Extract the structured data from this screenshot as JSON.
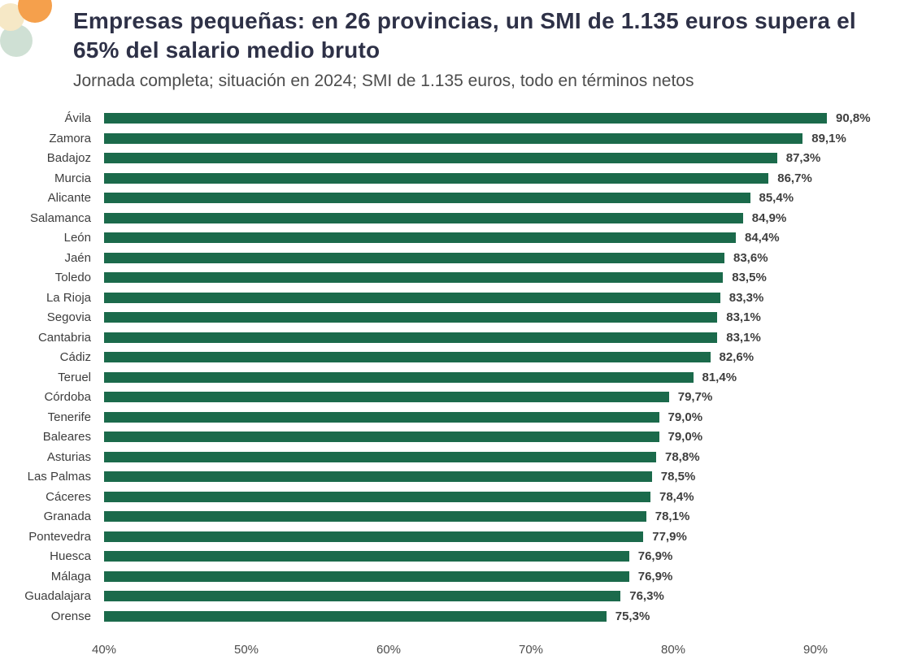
{
  "header": {
    "title": "Empresas pequeñas: en 26 provincias, un SMI de 1.135 euros supera el 65% del salario medio bruto",
    "subtitle": "Jornada completa; situación en 2024; SMI de 1.135 euros, todo en términos netos"
  },
  "colors": {
    "bar": "#1b6a4b",
    "title_text": "#2e3147",
    "subtitle_text": "#4d4d4d",
    "label_text": "#3d3d3d",
    "deco_orange": "#f5a04c",
    "deco_cream": "#f6e8c6",
    "deco_green": "#cfe0d4"
  },
  "chart_data": {
    "type": "bar",
    "orientation": "horizontal",
    "title": "Empresas pequeñas: en 26 provincias, un SMI de 1.135 euros supera el 65% del salario medio bruto",
    "subtitle": "Jornada completa; situación en 2024; SMI de 1.135 euros, todo en términos netos",
    "xlabel": "",
    "ylabel": "",
    "xlim": [
      40,
      96
    ],
    "grid": false,
    "legend": false,
    "categories": [
      "Ávila",
      "Zamora",
      "Badajoz",
      "Murcia",
      "Alicante",
      "Salamanca",
      "León",
      "Jaén",
      "Toledo",
      "La Rioja",
      "Segovia",
      "Cantabria",
      "Cádiz",
      "Teruel",
      "Córdoba",
      "Tenerife",
      "Baleares",
      "Asturias",
      "Las Palmas",
      "Cáceres",
      "Granada",
      "Pontevedra",
      "Huesca",
      "Málaga",
      "Guadalajara",
      "Orense"
    ],
    "values": [
      90.8,
      89.1,
      87.3,
      86.7,
      85.4,
      84.9,
      84.4,
      83.6,
      83.5,
      83.3,
      83.1,
      83.1,
      82.6,
      81.4,
      79.7,
      79.0,
      79.0,
      78.8,
      78.5,
      78.4,
      78.1,
      77.9,
      76.9,
      76.9,
      76.3,
      75.3
    ],
    "value_labels": [
      "90,8%",
      "89,1%",
      "87,3%",
      "86,7%",
      "85,4%",
      "84,9%",
      "84,4%",
      "83,6%",
      "83,5%",
      "83,3%",
      "83,1%",
      "83,1%",
      "82,6%",
      "81,4%",
      "79,7%",
      "79,0%",
      "79,0%",
      "78,8%",
      "78,5%",
      "78,4%",
      "78,1%",
      "77,9%",
      "76,9%",
      "76,9%",
      "76,3%",
      "75,3%"
    ],
    "x_ticks": [
      40,
      50,
      60,
      70,
      80,
      90
    ],
    "x_tick_labels": [
      "40%",
      "50%",
      "60%",
      "70%",
      "80%",
      "90%"
    ]
  }
}
